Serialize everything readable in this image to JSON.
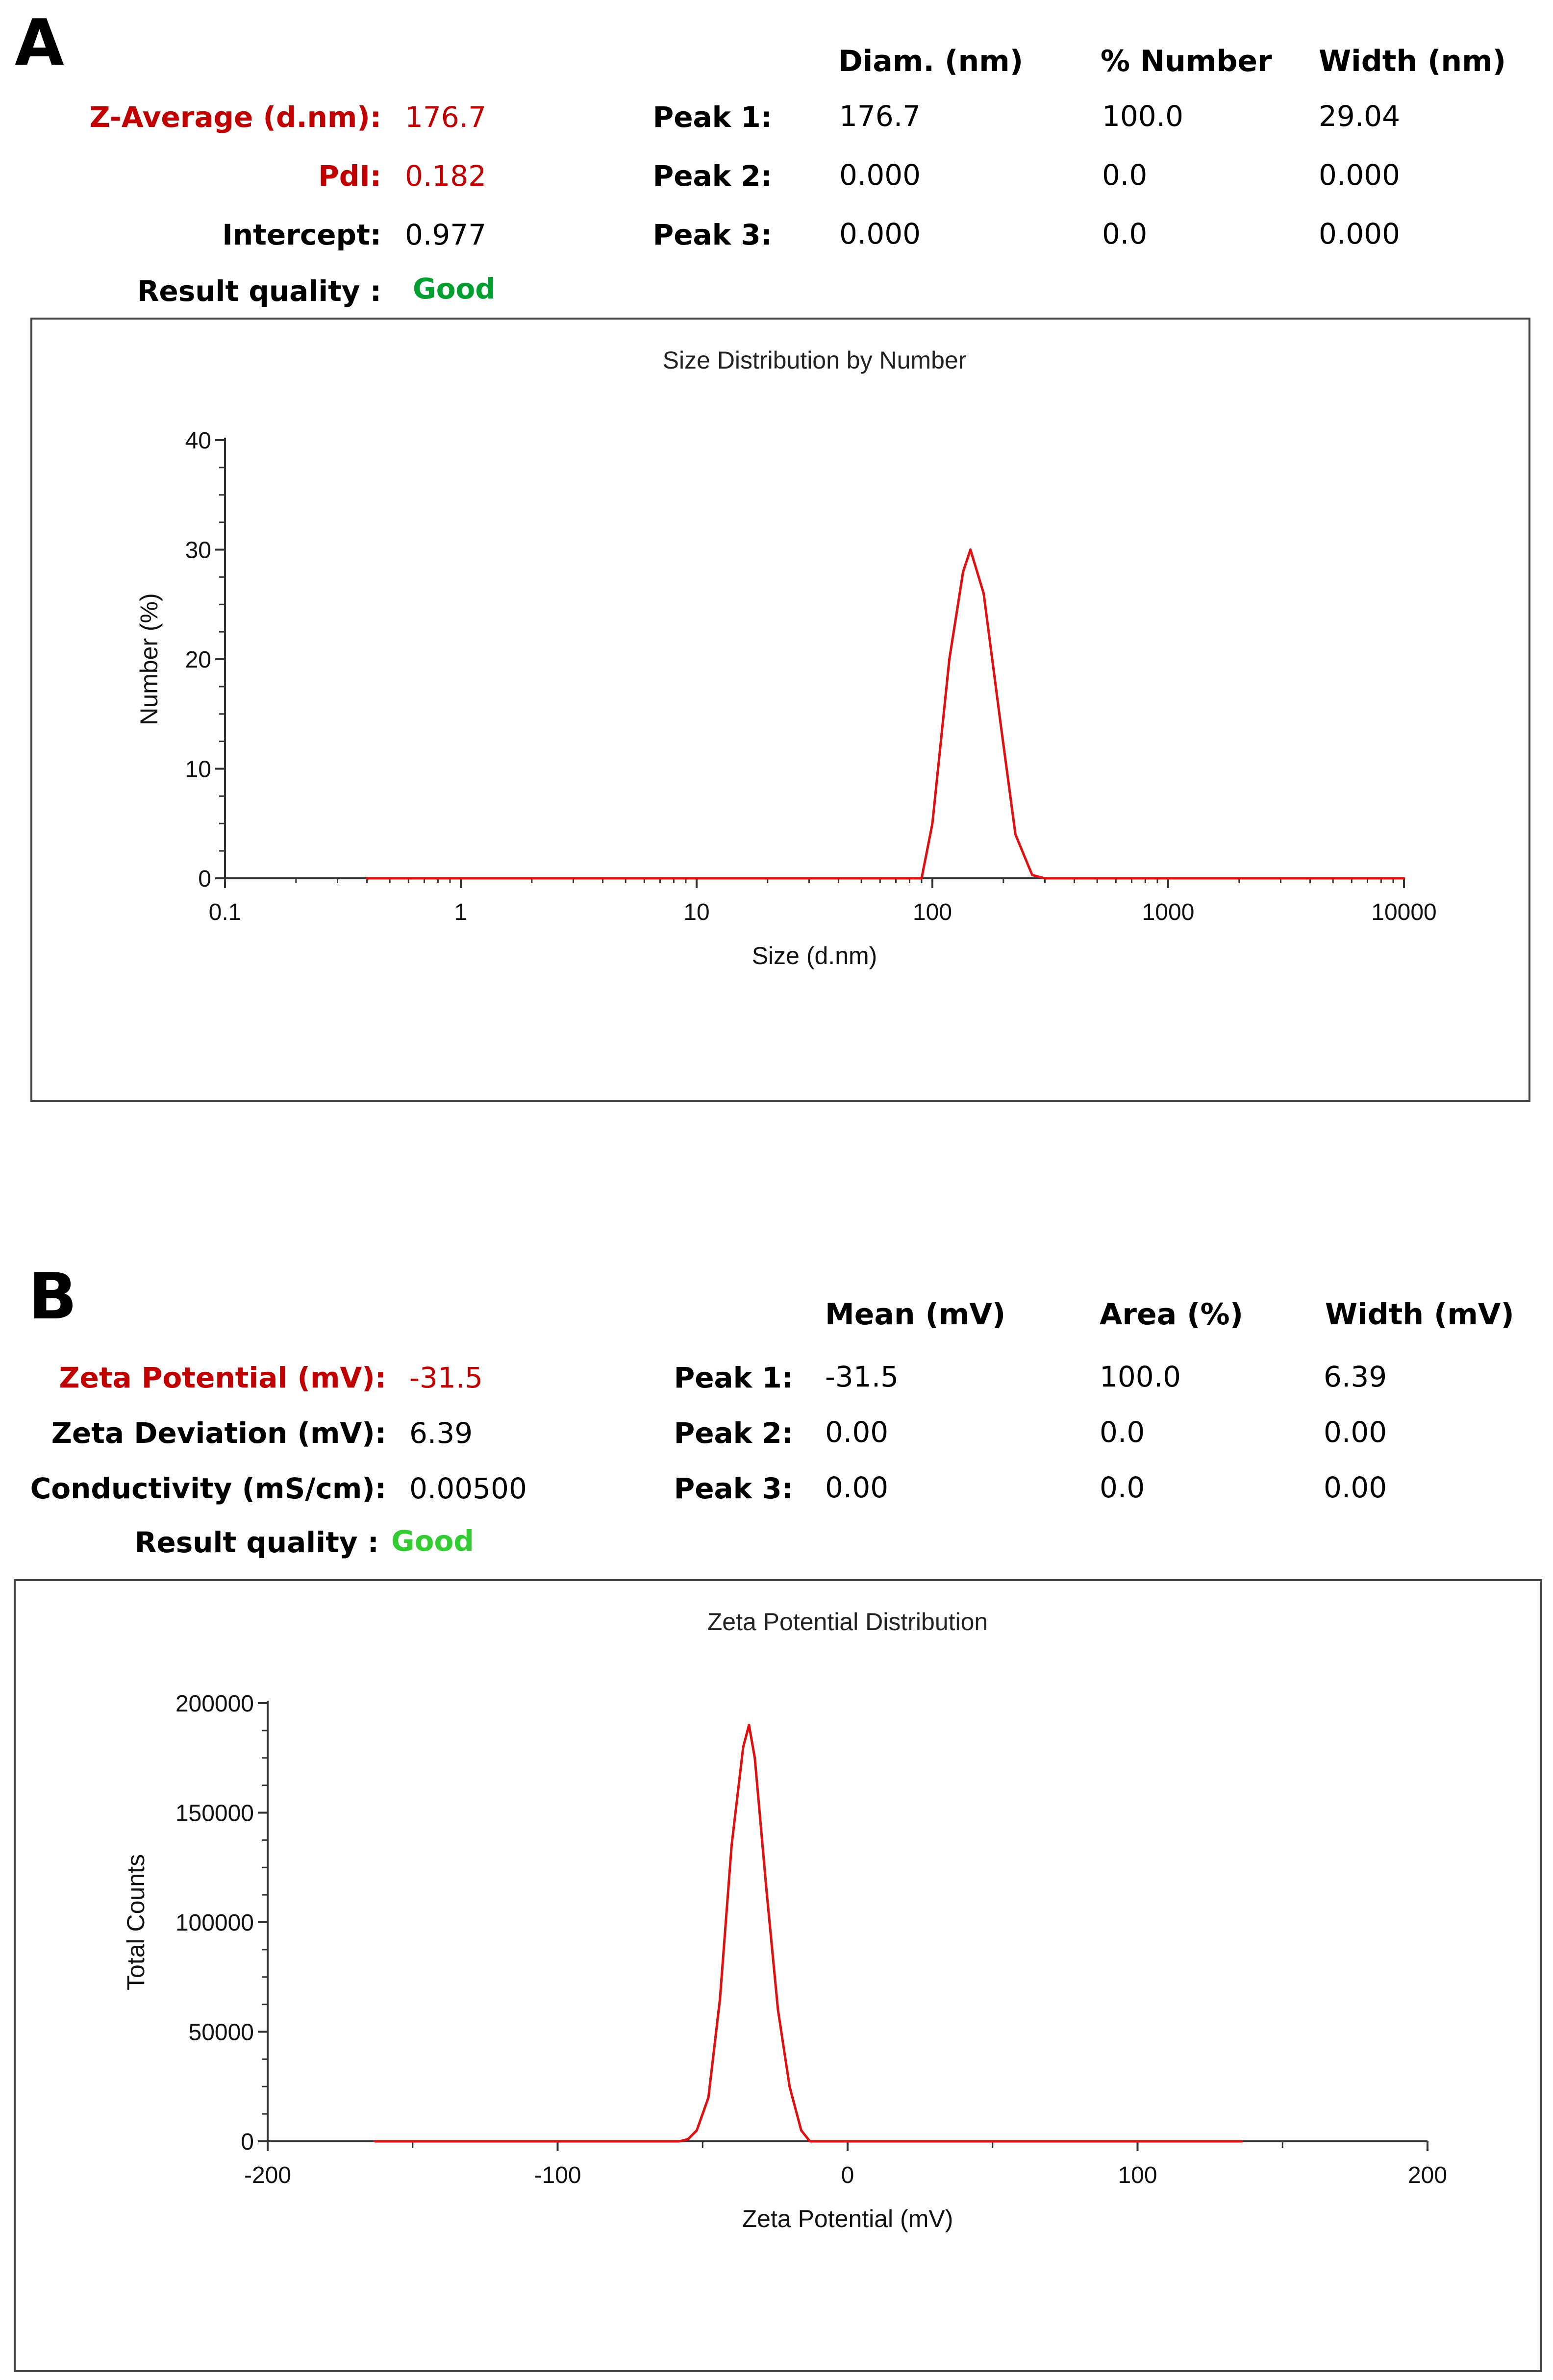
{
  "colors": {
    "highlight": "#c00000",
    "good_a": "#00a030",
    "good_b": "#33cc33",
    "curve": "#e01010"
  },
  "panel_a": {
    "letter": "A",
    "columns": {
      "diam": "Diam. (nm)",
      "pct": "% Number",
      "width": "Width (nm)"
    },
    "results": [
      {
        "label": "Z-Average (d.nm):",
        "value": "176.7",
        "highlight": true
      },
      {
        "label": "PdI:",
        "value": "0.182",
        "highlight": true
      },
      {
        "label": "Intercept:",
        "value": "0.977",
        "highlight": false
      }
    ],
    "quality_label": "Result quality :",
    "quality_value": "Good",
    "peaks": [
      {
        "label": "Peak 1:",
        "diam": "176.7",
        "pct": "100.0",
        "width": "29.04"
      },
      {
        "label": "Peak 2:",
        "diam": "0.000",
        "pct": "0.0",
        "width": "0.000"
      },
      {
        "label": "Peak 3:",
        "diam": "0.000",
        "pct": "0.0",
        "width": "0.000"
      }
    ]
  },
  "panel_b": {
    "letter": "B",
    "columns": {
      "mean": "Mean (mV)",
      "area": "Area (%)",
      "width": "Width (mV)"
    },
    "results": [
      {
        "label": "Zeta Potential (mV):",
        "value": "-31.5",
        "highlight": true
      },
      {
        "label": "Zeta Deviation (mV):",
        "value": "6.39",
        "highlight": false
      },
      {
        "label": "Conductivity (mS/cm):",
        "value": "0.00500",
        "highlight": false
      }
    ],
    "quality_label": "Result quality :",
    "quality_value": "Good",
    "peaks": [
      {
        "label": "Peak 1:",
        "mean": "-31.5",
        "area": "100.0",
        "width": "6.39"
      },
      {
        "label": "Peak 2:",
        "mean": "0.00",
        "area": "0.0",
        "width": "0.00"
      },
      {
        "label": "Peak 3:",
        "mean": "0.00",
        "area": "0.0",
        "width": "0.00"
      }
    ]
  },
  "chart_data": [
    {
      "type": "line",
      "title": "Size Distribution by Number",
      "xlabel": "Size (d.nm)",
      "ylabel": "Number (%)",
      "xscale": "log",
      "xlim": [
        0.1,
        10000
      ],
      "ylim": [
        0,
        40
      ],
      "xticks": [
        "0.1",
        "1",
        "10",
        "100",
        "1000",
        "10000"
      ],
      "yticks": [
        "0",
        "10",
        "20",
        "30",
        "40"
      ],
      "grid": false,
      "legend": "none",
      "series": [
        {
          "x": [
            0.4,
            1,
            10,
            90,
            100,
            118,
            135,
            145,
            165,
            195,
            225,
            265,
            300,
            1000,
            10000
          ],
          "y": [
            0,
            0,
            0,
            0,
            5,
            20,
            28,
            30,
            26,
            14,
            4,
            0.3,
            0,
            0,
            0
          ]
        }
      ]
    },
    {
      "type": "line",
      "title": "Zeta Potential Distribution",
      "xlabel": "Zeta Potential (mV)",
      "ylabel": "Total Counts",
      "xlim": [
        -200,
        200
      ],
      "ylim": [
        0,
        200000
      ],
      "xticks": [
        "-200",
        "-100",
        "0",
        "100",
        "200"
      ],
      "yticks": [
        "0",
        "50000",
        "100000",
        "150000",
        "200000"
      ],
      "grid": false,
      "legend": "none",
      "series": [
        {
          "x": [
            -163,
            -100,
            -58,
            -55,
            -52,
            -48,
            -44,
            -40,
            -36,
            -34,
            -32,
            -28,
            -24,
            -20,
            -16,
            -13,
            0,
            100,
            136
          ],
          "y": [
            0,
            0,
            0,
            1000,
            5000,
            20000,
            65000,
            135000,
            180000,
            190000,
            175000,
            115000,
            60000,
            25000,
            5000,
            0,
            0,
            0,
            0
          ]
        }
      ]
    }
  ]
}
